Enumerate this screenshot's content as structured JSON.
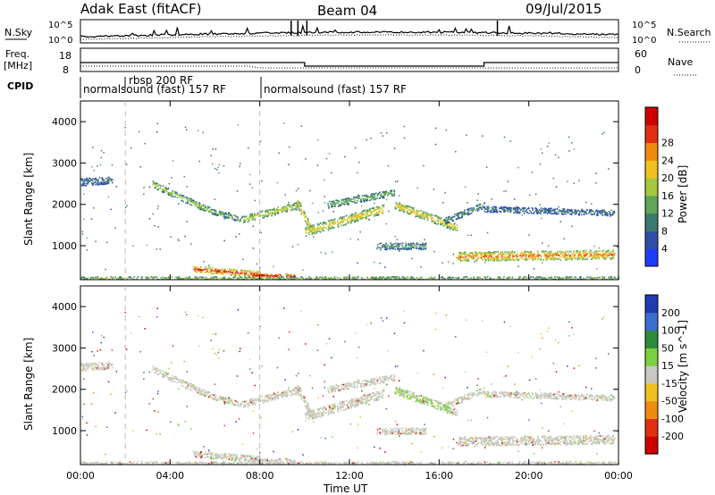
{
  "header": {
    "station": "Adak East (fitACF)",
    "beam": "Beam 04",
    "date": "09/Jul/2015"
  },
  "noise_panel": {
    "left_label": "N.Sky",
    "right_label": "N.Search",
    "left_ticks": [
      "10^5",
      "10^0"
    ],
    "right_ticks": [
      "10^5",
      "10^0"
    ]
  },
  "freq_panel": {
    "left_label_1": "Freq.",
    "left_label_2": "[MHz]",
    "left_ticks": [
      "18",
      "8"
    ],
    "right_label": "Nave",
    "right_ticks": [
      "60",
      "0"
    ]
  },
  "cpid": {
    "label": "CPID",
    "programs": [
      {
        "name": "normalsound (fast) 157 RF",
        "start_h": 0,
        "end_h": 2
      },
      {
        "name": "rbsp 200 RF",
        "start_h": 2,
        "end_h": 7
      },
      {
        "name": "normalsound (fast) 157 RF",
        "start_h": 2,
        "end_h": 7,
        "row": 2
      },
      {
        "name": "normalsound (fast) 157 RF",
        "start_h": 7,
        "end_h": 24
      }
    ]
  },
  "axes": {
    "xlabel": "Time UT",
    "ylabel": "Slant Range [km]",
    "xticks": [
      "00:00",
      "04:00",
      "08:00",
      "12:00",
      "16:00",
      "20:00",
      "00:00"
    ],
    "yticks": [
      "1000",
      "2000",
      "3000",
      "4000"
    ]
  },
  "power_colorbar": {
    "label": "Power [dB]",
    "ticks": [
      "4",
      "8",
      "12",
      "16",
      "20",
      "24",
      "28"
    ],
    "colors": [
      "#1e3cff",
      "#2f4fa8",
      "#3a7a6e",
      "#5fa55a",
      "#a6c83c",
      "#f0c020",
      "#f08a10",
      "#e03010",
      "#d00000"
    ]
  },
  "velocity_colorbar": {
    "label": "Velocity [m s^-1]",
    "ticks": [
      "200",
      "100",
      "50",
      "15",
      "-15",
      "-50",
      "-100",
      "-200"
    ],
    "colors": [
      "#1e3cb0",
      "#3a6ed0",
      "#2d8a3a",
      "#7ad040",
      "#c8c8c0",
      "#f0c020",
      "#f08a10",
      "#e03010",
      "#d00000"
    ]
  },
  "chart_data": {
    "type": "heatmap",
    "x_range_hours": [
      0,
      24
    ],
    "y_range_km": [
      180,
      4500
    ],
    "title": "Beam 04",
    "xlabel": "Time UT",
    "ylabel": "Slant Range [km]",
    "grid": false,
    "scatter_bands": [
      {
        "t0": 3.2,
        "t1": 5.8,
        "r0": 2500,
        "r1": 1850,
        "width": 160,
        "power": 14
      },
      {
        "t0": 5.8,
        "t1": 7.2,
        "r0": 1850,
        "r1": 1650,
        "width": 140,
        "power": 12
      },
      {
        "t0": 7.2,
        "t1": 9.8,
        "r0": 1650,
        "r1": 2000,
        "width": 170,
        "power": 16
      },
      {
        "t0": 9.6,
        "t1": 10.4,
        "r0": 2100,
        "r1": 1300,
        "width": 200,
        "power": 20
      },
      {
        "t0": 10.0,
        "t1": 13.5,
        "r0": 1350,
        "r1": 1900,
        "width": 220,
        "power": 18
      },
      {
        "t0": 11.0,
        "t1": 14.0,
        "r0": 2000,
        "r1": 2300,
        "width": 160,
        "power": 12
      },
      {
        "t0": 14.0,
        "t1": 16.8,
        "r0": 2000,
        "r1": 1450,
        "width": 200,
        "power": 18
      },
      {
        "t0": 16.2,
        "t1": 18.0,
        "r0": 1600,
        "r1": 2000,
        "width": 150,
        "power": 10
      },
      {
        "t0": 18.0,
        "t1": 23.8,
        "r0": 1900,
        "r1": 1800,
        "width": 140,
        "power": 8
      },
      {
        "t0": 13.2,
        "t1": 15.4,
        "r0": 1000,
        "r1": 1000,
        "width": 160,
        "power": 10
      },
      {
        "t0": 16.8,
        "t1": 23.8,
        "r0": 750,
        "r1": 800,
        "width": 220,
        "power": 22
      },
      {
        "t0": 0.0,
        "t1": 1.4,
        "r0": 2550,
        "r1": 2600,
        "width": 180,
        "power": 8
      },
      {
        "t0": 5.0,
        "t1": 8.0,
        "r0": 450,
        "r1": 320,
        "width": 150,
        "power": 26
      },
      {
        "t0": 7.6,
        "t1": 9.6,
        "r0": 300,
        "r1": 280,
        "width": 100,
        "power": 28
      },
      {
        "t0": 0.0,
        "t1": 24.0,
        "r0": 230,
        "r1": 230,
        "width": 70,
        "power": 14
      }
    ]
  }
}
